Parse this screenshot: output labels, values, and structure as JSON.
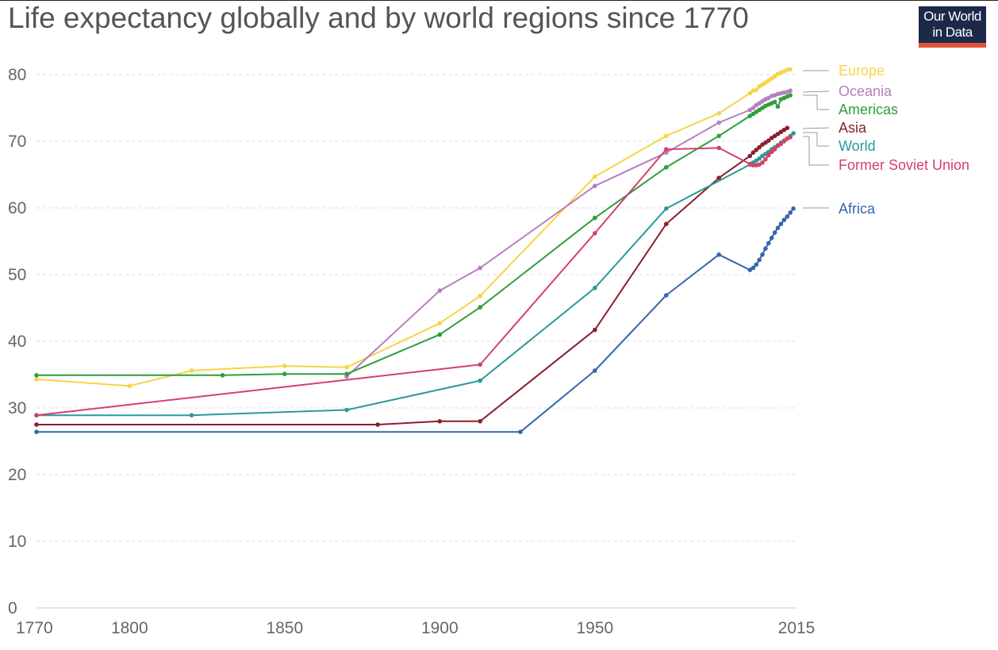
{
  "header": {
    "title": "Life expectancy globally and by world regions since 1770",
    "logo_line1": "Our World",
    "logo_line2": "in Data"
  },
  "chart_data": {
    "type": "line",
    "title": "Life expectancy globally and by world regions since 1770",
    "xlim": [
      1770,
      2015
    ],
    "ylim": [
      0,
      85
    ],
    "x_ticks": [
      1770,
      1800,
      1850,
      1900,
      1950,
      2015
    ],
    "y_ticks": [
      0,
      10,
      20,
      30,
      40,
      50,
      60,
      70,
      80
    ],
    "grid": "horizontal-dashed",
    "legend_position": "right",
    "series": [
      {
        "name": "Europe",
        "color": "#f5d547",
        "points": [
          [
            1770,
            34.3
          ],
          [
            1800,
            33.3
          ],
          [
            1820,
            35.6
          ],
          [
            1850,
            36.3
          ],
          [
            1870,
            36.1
          ],
          [
            1900,
            42.7
          ],
          [
            1913,
            46.8
          ],
          [
            1950,
            64.7
          ],
          [
            1973,
            70.8
          ],
          [
            1990,
            74.2
          ],
          [
            2000,
            77.2
          ],
          [
            2001,
            77.6
          ],
          [
            2002,
            77.7
          ],
          [
            2003,
            78.2
          ],
          [
            2004,
            78.5
          ],
          [
            2005,
            78.8
          ],
          [
            2006,
            79.1
          ],
          [
            2007,
            79.4
          ],
          [
            2008,
            79.7
          ],
          [
            2009,
            80.1
          ],
          [
            2010,
            80.3
          ],
          [
            2011,
            80.5
          ],
          [
            2012,
            80.7
          ],
          [
            2013,
            80.8
          ]
        ]
      },
      {
        "name": "Oceania",
        "color": "#b67fbd",
        "points": [
          [
            1870,
            34.7
          ],
          [
            1900,
            47.6
          ],
          [
            1913,
            51.0
          ],
          [
            1950,
            63.3
          ],
          [
            1973,
            68.3
          ],
          [
            1990,
            72.8
          ],
          [
            2000,
            74.7
          ],
          [
            2001,
            75.0
          ],
          [
            2002,
            75.4
          ],
          [
            2003,
            75.7
          ],
          [
            2004,
            76.0
          ],
          [
            2005,
            76.3
          ],
          [
            2006,
            76.5
          ],
          [
            2007,
            76.8
          ],
          [
            2008,
            76.9
          ],
          [
            2009,
            77.1
          ],
          [
            2010,
            77.2
          ],
          [
            2011,
            77.3
          ],
          [
            2012,
            77.4
          ],
          [
            2013,
            77.6
          ]
        ]
      },
      {
        "name": "Americas",
        "color": "#2e9e3e",
        "points": [
          [
            1770,
            34.9
          ],
          [
            1830,
            34.9
          ],
          [
            1850,
            35.1
          ],
          [
            1870,
            35.1
          ],
          [
            1900,
            41.0
          ],
          [
            1913,
            45.1
          ],
          [
            1950,
            58.5
          ],
          [
            1973,
            66.1
          ],
          [
            1990,
            70.8
          ],
          [
            2000,
            73.8
          ],
          [
            2001,
            74.1
          ],
          [
            2002,
            74.4
          ],
          [
            2003,
            74.7
          ],
          [
            2004,
            75.0
          ],
          [
            2005,
            75.3
          ],
          [
            2006,
            75.5
          ],
          [
            2007,
            75.7
          ],
          [
            2008,
            75.9
          ],
          [
            2009,
            75.2
          ],
          [
            2010,
            76.3
          ],
          [
            2011,
            76.5
          ],
          [
            2012,
            76.7
          ],
          [
            2013,
            76.9
          ]
        ]
      },
      {
        "name": "Asia",
        "color": "#8b1f2f",
        "points": [
          [
            1770,
            27.5
          ],
          [
            1880,
            27.5
          ],
          [
            1900,
            28.0
          ],
          [
            1913,
            28.0
          ],
          [
            1950,
            41.7
          ],
          [
            1973,
            57.6
          ],
          [
            1990,
            64.5
          ],
          [
            2000,
            67.8
          ],
          [
            2001,
            68.3
          ],
          [
            2002,
            68.7
          ],
          [
            2003,
            69.1
          ],
          [
            2004,
            69.5
          ],
          [
            2005,
            69.8
          ],
          [
            2006,
            70.1
          ],
          [
            2007,
            70.5
          ],
          [
            2008,
            70.8
          ],
          [
            2009,
            71.1
          ],
          [
            2010,
            71.4
          ],
          [
            2011,
            71.7
          ],
          [
            2012,
            72.0
          ]
        ]
      },
      {
        "name": "World",
        "color": "#2a9a9a",
        "points": [
          [
            1770,
            28.9
          ],
          [
            1820,
            28.9
          ],
          [
            1870,
            29.7
          ],
          [
            1913,
            34.1
          ],
          [
            1950,
            48.0
          ],
          [
            1973,
            59.9
          ],
          [
            2000,
            66.5
          ],
          [
            2001,
            66.8
          ],
          [
            2002,
            67.1
          ],
          [
            2003,
            67.4
          ],
          [
            2004,
            67.8
          ],
          [
            2005,
            68.1
          ],
          [
            2006,
            68.4
          ],
          [
            2007,
            68.8
          ],
          [
            2008,
            69.1
          ],
          [
            2009,
            69.4
          ],
          [
            2010,
            69.8
          ],
          [
            2011,
            70.1
          ],
          [
            2012,
            70.4
          ],
          [
            2013,
            70.8
          ],
          [
            2014,
            71.2
          ]
        ]
      },
      {
        "name": "Former Soviet Union",
        "color": "#d6406b",
        "points": [
          [
            1770,
            28.9
          ],
          [
            1913,
            36.5
          ],
          [
            1950,
            56.2
          ],
          [
            1973,
            68.8
          ],
          [
            1990,
            69.0
          ],
          [
            2000,
            66.6
          ],
          [
            2001,
            66.4
          ],
          [
            2002,
            66.4
          ],
          [
            2003,
            66.5
          ],
          [
            2004,
            66.8
          ],
          [
            2005,
            67.3
          ],
          [
            2006,
            67.9
          ],
          [
            2007,
            68.4
          ],
          [
            2008,
            68.8
          ],
          [
            2009,
            69.3
          ],
          [
            2010,
            69.6
          ],
          [
            2011,
            70.0
          ],
          [
            2012,
            70.4
          ],
          [
            2013,
            70.6
          ]
        ]
      },
      {
        "name": "Africa",
        "color": "#3566ab",
        "points": [
          [
            1770,
            26.4
          ],
          [
            1926,
            26.4
          ],
          [
            1950,
            35.6
          ],
          [
            1973,
            46.9
          ],
          [
            1990,
            53.0
          ],
          [
            2000,
            50.7
          ],
          [
            2001,
            51.0
          ],
          [
            2002,
            51.5
          ],
          [
            2003,
            52.2
          ],
          [
            2004,
            53.0
          ],
          [
            2005,
            53.9
          ],
          [
            2006,
            54.7
          ],
          [
            2007,
            55.5
          ],
          [
            2008,
            56.3
          ],
          [
            2009,
            57.0
          ],
          [
            2010,
            57.6
          ],
          [
            2011,
            58.2
          ],
          [
            2012,
            58.7
          ],
          [
            2013,
            59.3
          ],
          [
            2014,
            59.9
          ]
        ]
      }
    ]
  }
}
